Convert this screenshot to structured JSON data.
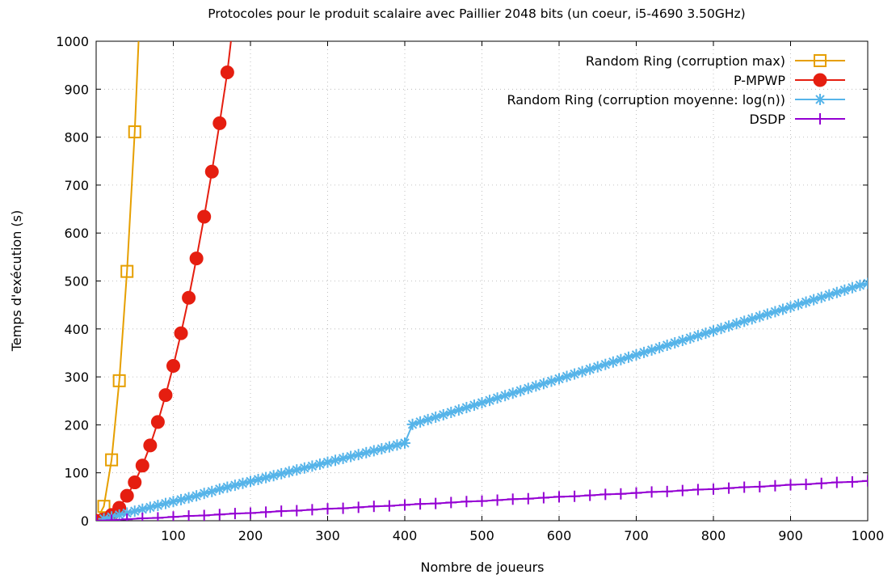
{
  "chart_data": {
    "type": "line",
    "title": "Protocoles pour le produit scalaire avec Paillier 2048 bits (un coeur, i5-4690 3.50GHz)",
    "xlabel": "Nombre de joueurs",
    "ylabel": "Temps d'exécution (s)",
    "xlim": [
      0,
      1000
    ],
    "ylim": [
      0,
      1000
    ],
    "xticks": [
      100,
      200,
      300,
      400,
      500,
      600,
      700,
      800,
      900,
      1000
    ],
    "yticks": [
      0,
      100,
      200,
      300,
      400,
      500,
      600,
      700,
      800,
      900,
      1000
    ],
    "grid": true,
    "legend_position": "top-right",
    "series": [
      {
        "name": "Random Ring (corruption max)",
        "color": "#e69f00",
        "marker": "open-square",
        "x": [
          0,
          10,
          20,
          30,
          40,
          50
        ],
        "y": [
          0,
          30,
          127,
          292,
          520,
          811
        ]
      },
      {
        "name": "P-MPWP",
        "color": "#e51e10",
        "marker": "filled-circle",
        "x": [
          0,
          10,
          20,
          30,
          40,
          50,
          60,
          70,
          80,
          90,
          100,
          110,
          120,
          130,
          140,
          150,
          160,
          170
        ],
        "y": [
          0,
          3,
          12,
          27,
          52,
          80,
          115,
          157,
          206,
          262,
          323,
          391,
          465,
          547,
          634,
          728,
          829,
          935
        ]
      },
      {
        "name": "Random Ring (corruption moyenne: log(n))",
        "color": "#56b4e9",
        "marker": "star",
        "x_start": 10,
        "x_step": 10,
        "y": [
          4,
          8,
          12,
          16,
          20,
          24,
          28,
          32,
          36,
          40,
          44,
          48,
          52,
          57,
          61,
          66,
          70,
          74,
          78,
          82,
          86,
          90,
          94,
          98,
          102,
          106,
          110,
          114,
          118,
          122,
          126,
          130,
          134,
          138,
          142,
          146,
          150,
          154,
          158,
          162,
          201,
          206,
          211,
          216,
          221,
          226,
          231,
          236,
          241,
          246,
          251,
          256,
          261,
          266,
          271,
          276,
          281,
          286,
          291,
          296,
          301,
          306,
          311,
          316,
          321,
          326,
          331,
          336,
          341,
          346,
          351,
          356,
          361,
          366,
          371,
          376,
          381,
          386,
          391,
          396,
          401,
          406,
          411,
          416,
          421,
          426,
          431,
          436,
          441,
          446,
          451,
          456,
          461,
          466,
          471,
          476,
          481,
          486,
          491,
          495
        ]
      },
      {
        "name": "DSDP",
        "color": "#9400d3",
        "marker": "plus",
        "x_start": 0,
        "x_step": 20,
        "y": [
          0,
          1,
          3,
          5,
          6,
          8,
          10,
          11,
          13,
          15,
          16,
          18,
          20,
          21,
          23,
          25,
          26,
          28,
          30,
          31,
          33,
          35,
          36,
          38,
          40,
          41,
          43,
          45,
          46,
          48,
          50,
          51,
          53,
          55,
          56,
          58,
          60,
          61,
          63,
          65,
          66,
          68,
          70,
          71,
          73,
          75,
          76,
          78,
          80,
          81,
          83
        ]
      }
    ]
  }
}
